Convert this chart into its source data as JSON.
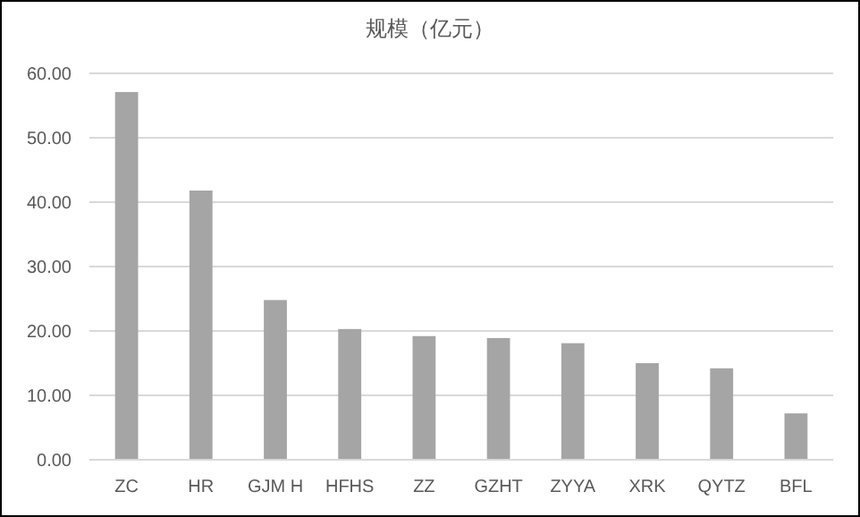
{
  "chart_data": {
    "type": "bar",
    "title": "规模（亿元）",
    "categories": [
      "ZC",
      "HR",
      "GJM H",
      "HFHS",
      "ZZ",
      "GZHT",
      "ZYYA",
      "XRK",
      "QYTZ",
      "BFL"
    ],
    "values": [
      57.1,
      41.8,
      24.8,
      20.3,
      19.2,
      18.9,
      18.1,
      15.0,
      14.2,
      7.2
    ],
    "color": "#a5a5a5",
    "ylim": [
      0,
      60
    ],
    "yticks": [
      {
        "value": 0,
        "label": "0.00"
      },
      {
        "value": 10,
        "label": "10.00"
      },
      {
        "value": 20,
        "label": "20.00"
      },
      {
        "value": 30,
        "label": "30.00"
      },
      {
        "value": 40,
        "label": "40.00"
      },
      {
        "value": 50,
        "label": "50.00"
      },
      {
        "value": 60,
        "label": "60.00"
      }
    ],
    "grid": "y"
  }
}
